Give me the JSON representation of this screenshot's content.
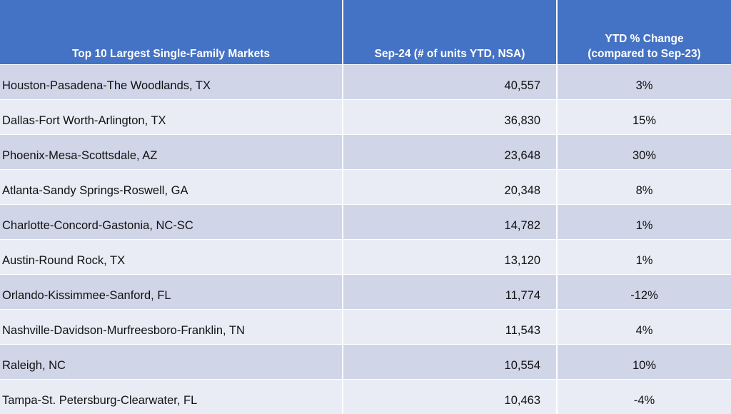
{
  "table": {
    "headers": [
      "Top 10 Largest Single-Family Markets",
      "Sep-24 (# of units YTD, NSA)",
      "YTD % Change (compared to Sep-23)"
    ],
    "rows": [
      {
        "market": "Houston-Pasadena-The Woodlands, TX",
        "units": "40,557",
        "change": "3%"
      },
      {
        "market": "Dallas-Fort Worth-Arlington, TX",
        "units": "36,830",
        "change": "15%"
      },
      {
        "market": "Phoenix-Mesa-Scottsdale, AZ",
        "units": "23,648",
        "change": "30%"
      },
      {
        "market": "Atlanta-Sandy Springs-Roswell, GA",
        "units": "20,348",
        "change": "8%"
      },
      {
        "market": "Charlotte-Concord-Gastonia, NC-SC",
        "units": "14,782",
        "change": "1%"
      },
      {
        "market": "Austin-Round Rock, TX",
        "units": "13,120",
        "change": "1%"
      },
      {
        "market": "Orlando-Kissimmee-Sanford, FL",
        "units": "11,774",
        "change": "-12%"
      },
      {
        "market": "Nashville-Davidson-Murfreesboro-Franklin, TN",
        "units": "11,543",
        "change": "4%"
      },
      {
        "market": "Raleigh, NC",
        "units": "10,554",
        "change": "10%"
      },
      {
        "market": "Tampa-St. Petersburg-Clearwater, FL",
        "units": "10,463",
        "change": "-4%"
      }
    ]
  },
  "colors": {
    "header_bg": "#4472c4",
    "header_text": "#ffffff",
    "row_band_dark": "#d0d6e8",
    "row_band_light": "#e9ecf5"
  }
}
